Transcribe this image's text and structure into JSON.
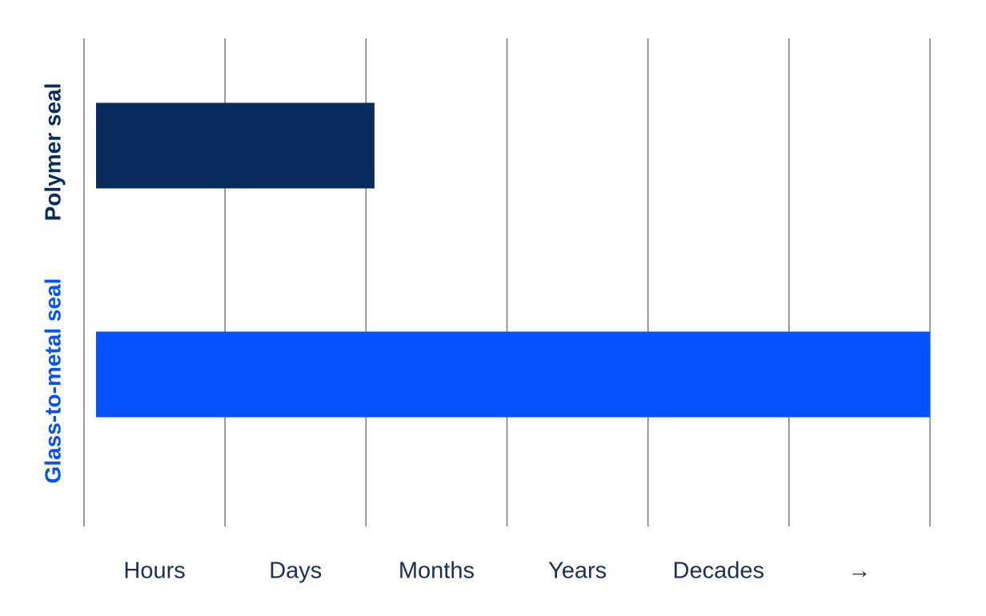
{
  "chart_data": {
    "type": "barh",
    "categories": [
      "Polymer seal",
      "Glass-to-metal seal"
    ],
    "values": [
      2.06,
      6
    ],
    "colors": [
      "#082d5c",
      "#0451ff"
    ],
    "xlim": [
      0,
      6
    ],
    "xticks": [
      {
        "value": 0.5,
        "label": "Hours"
      },
      {
        "value": 1.5,
        "label": "Days"
      },
      {
        "value": 2.5,
        "label": "Months"
      },
      {
        "value": 3.5,
        "label": "Years"
      },
      {
        "value": 4.5,
        "label": "Decades"
      },
      {
        "value": 5.5,
        "label": "→"
      }
    ],
    "xgrid": [
      0,
      1,
      2,
      3,
      4,
      5,
      6
    ],
    "grid": true
  }
}
